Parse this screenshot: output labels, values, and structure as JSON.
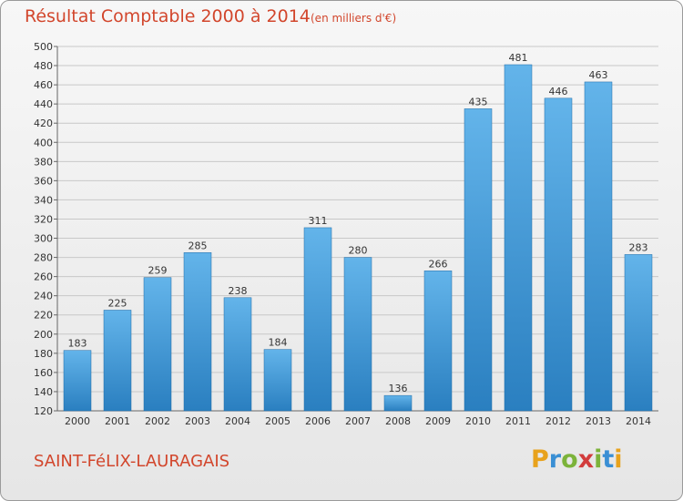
{
  "chart_data": {
    "type": "bar",
    "title": "Résultat Comptable 2000 à 2014",
    "subtitle": "(en milliers d'€)",
    "categories": [
      "2000",
      "2001",
      "2002",
      "2003",
      "2004",
      "2005",
      "2006",
      "2007",
      "2008",
      "2009",
      "2010",
      "2011",
      "2012",
      "2013",
      "2014"
    ],
    "values": [
      183,
      225,
      259,
      285,
      238,
      184,
      311,
      280,
      136,
      266,
      435,
      481,
      446,
      463,
      283
    ],
    "ylim": [
      120,
      500
    ],
    "ytick_step": 20,
    "grid": true,
    "xlabel": "",
    "ylabel": ""
  },
  "footer": {
    "commune": "SAINT-FéLIX-LAURAGAIS",
    "logo_letters": [
      "P",
      "r",
      "o",
      "x",
      "i",
      "t",
      "i"
    ],
    "logo_colors": [
      "#e8a21c",
      "#3a8fd4",
      "#7cb33a",
      "#d23c3c",
      "#7cb33a",
      "#3a8fd4",
      "#e8a21c"
    ]
  },
  "colors": {
    "title": "#d2462c",
    "bar_top": "#63b4ea",
    "bar_bottom": "#2a7fc0",
    "grid": "#c8c8c8"
  }
}
